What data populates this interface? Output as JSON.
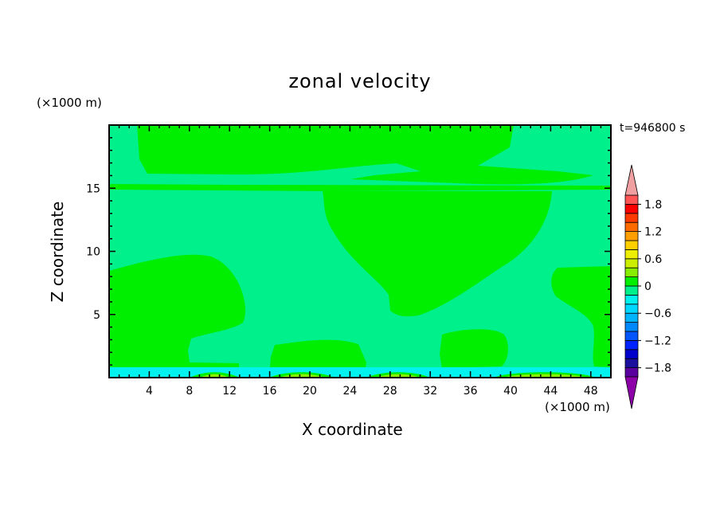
{
  "chart_data": {
    "type": "heatmap",
    "title": "zonal velocity",
    "xlabel": "X coordinate",
    "ylabel": "Z coordinate",
    "x_unit": "(×1000 m)",
    "y_unit": "(×1000 m)",
    "time_label": "t=946800 s",
    "xlim": [
      0,
      50
    ],
    "ylim": [
      0,
      20
    ],
    "x_ticks": [
      4,
      8,
      12,
      16,
      20,
      24,
      28,
      32,
      36,
      40,
      44,
      48
    ],
    "y_ticks": [
      5,
      10,
      15
    ],
    "colorbar": {
      "levels": [
        -2.0,
        -1.8,
        -1.6,
        -1.4,
        -1.2,
        -1.0,
        -0.8,
        -0.6,
        -0.4,
        -0.2,
        0.0,
        0.2,
        0.4,
        0.6,
        0.8,
        1.0,
        1.2,
        1.4,
        1.6,
        1.8,
        2.0
      ],
      "tick_labels": [
        "1.8",
        "1.2",
        "0.6",
        "0",
        "−0.6",
        "−1.2",
        "−1.8"
      ],
      "tick_values": [
        1.8,
        1.2,
        0.6,
        0.0,
        -0.6,
        -1.2,
        -1.8
      ],
      "colors": [
        "#5a009f",
        "#1b0f9e",
        "#0000cd",
        "#0022ff",
        "#0055ff",
        "#0088ff",
        "#00b4ff",
        "#00d8ff",
        "#00f2ee",
        "#00f08c",
        "#00ee00",
        "#88ee00",
        "#ccee00",
        "#eeee00",
        "#ffd000",
        "#ff9e00",
        "#ff6a00",
        "#ff3a00",
        "#ff0000",
        "#ff5555"
      ],
      "under_color": "#8c00a8",
      "over_color": "#f0a0a0"
    },
    "fill_regions": [
      {
        "range": "-0.2 to 0",
        "color": "#00f08c"
      },
      {
        "range": "0 to 0.2",
        "color": "#00ee00"
      },
      {
        "range": "-0.4 to -0.2",
        "color": "#00f2ee"
      },
      {
        "range": "0.2 to 0.4",
        "color": "#88ee00"
      }
    ]
  }
}
